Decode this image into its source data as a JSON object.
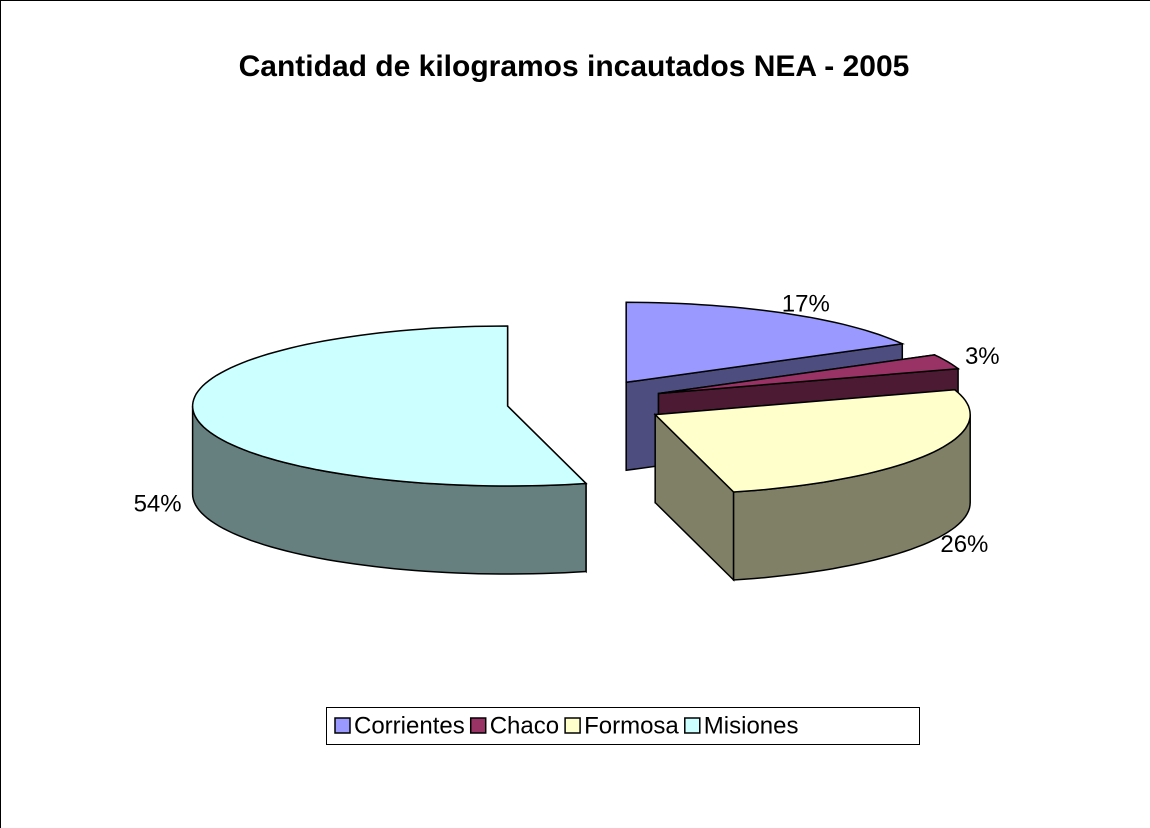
{
  "chart_data": {
    "type": "pie",
    "title": "Cantidad de kilogramos incautados NEA - 2005",
    "categories": [
      "Corrientes",
      "Chaco",
      "Formosa",
      "Misiones"
    ],
    "values": [
      17,
      3,
      26,
      54
    ],
    "value_labels": [
      "17%",
      "3%",
      "26%",
      "54%"
    ],
    "colors": [
      "#9999ff",
      "#993366",
      "#ffffcc",
      "#ccffff"
    ],
    "legend": "bottom"
  }
}
